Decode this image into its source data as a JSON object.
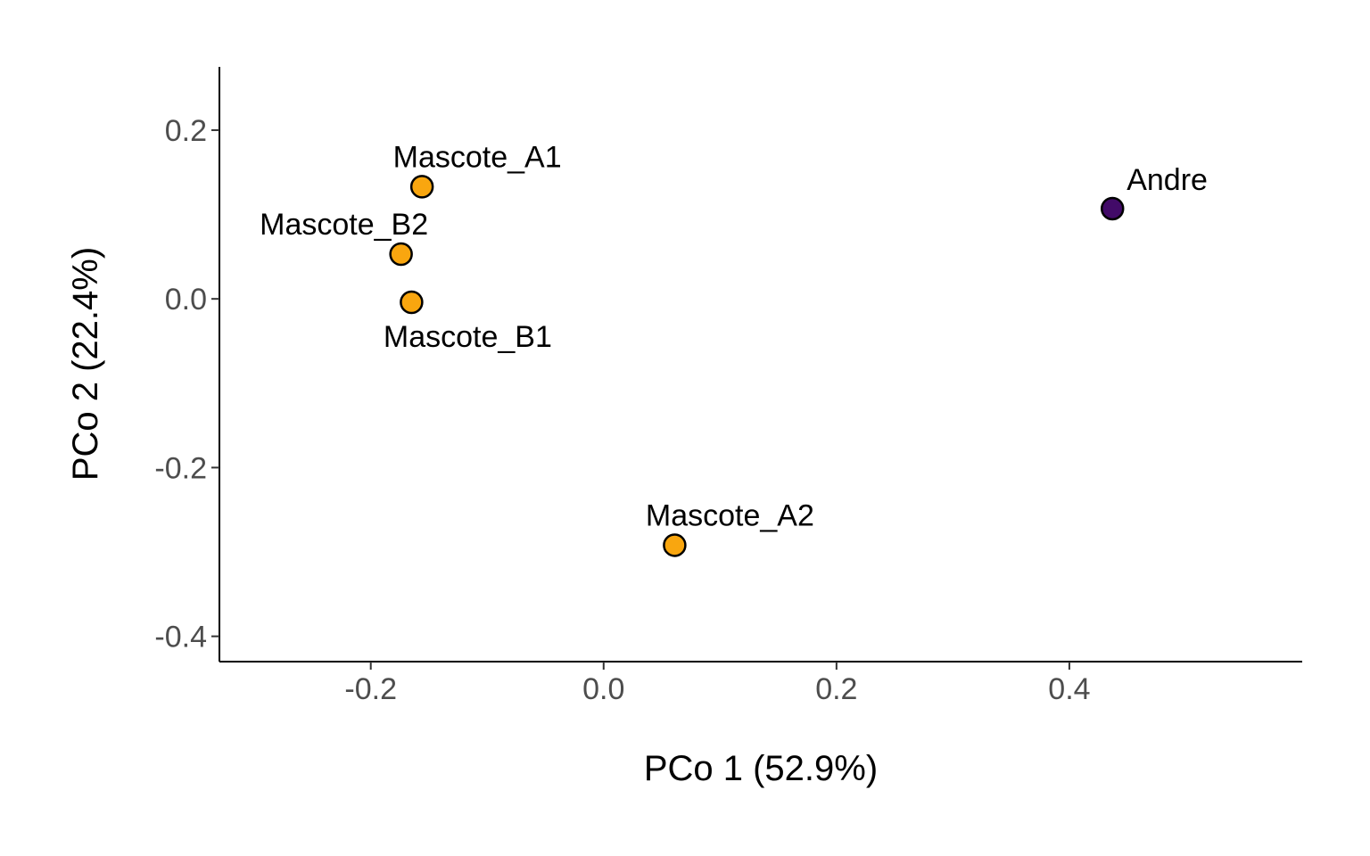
{
  "chart_data": {
    "type": "scatter",
    "title": "",
    "xlabel": "PCo 1 (52.9%)",
    "ylabel": "PCo 2 (22.4%)",
    "xlim": [
      -0.33,
      0.6
    ],
    "ylim": [
      -0.43,
      0.275
    ],
    "x_ticks": [
      -0.2,
      0.0,
      0.2,
      0.4
    ],
    "y_ticks": [
      -0.4,
      -0.2,
      0.0,
      0.2
    ],
    "x_tick_labels": [
      "-0.2",
      "0.0",
      "0.2",
      "0.4"
    ],
    "y_tick_labels": [
      "-0.4",
      "-0.2",
      "0.0",
      "0.2"
    ],
    "grid": false,
    "legend": "none",
    "points": [
      {
        "label": "Mascote_A1",
        "x": -0.156,
        "y": 0.133,
        "color": "#F9A60F",
        "label_pos": "above"
      },
      {
        "label": "Mascote_B2",
        "x": -0.174,
        "y": 0.053,
        "color": "#F9A60F",
        "label_pos": "above-left"
      },
      {
        "label": "Mascote_B1",
        "x": -0.165,
        "y": -0.004,
        "color": "#F9A60F",
        "label_pos": "below"
      },
      {
        "label": "Mascote_A2",
        "x": 0.061,
        "y": -0.292,
        "color": "#F9A60F",
        "label_pos": "above"
      },
      {
        "label": "Andre",
        "x": 0.437,
        "y": 0.107,
        "color": "#420A68",
        "label_pos": "above-right"
      }
    ]
  }
}
